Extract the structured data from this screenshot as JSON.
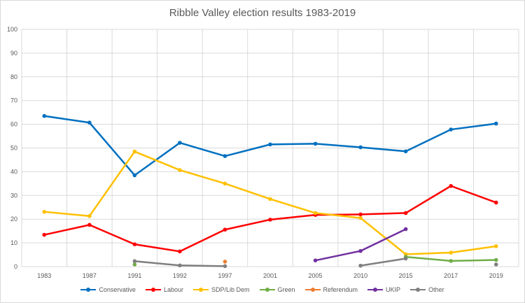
{
  "chart_data": {
    "type": "line",
    "title": "Ribble Valley election results 1983-2019",
    "categories": [
      "1983",
      "1987",
      "1991",
      "1992",
      "1997",
      "2001",
      "2005",
      "2010",
      "2015",
      "2017",
      "2019"
    ],
    "ylim": [
      0,
      100
    ],
    "yticks": [
      0,
      10,
      20,
      30,
      40,
      50,
      60,
      70,
      80,
      90,
      100
    ],
    "grid": true,
    "legend_position": "bottom",
    "series": [
      {
        "name": "Conservative",
        "color": "#0070c0",
        "values": [
          63.5,
          60.7,
          38.5,
          52.2,
          46.6,
          51.5,
          51.8,
          50.3,
          48.6,
          57.8,
          60.3
        ]
      },
      {
        "name": "Labour",
        "color": "#ff0000",
        "values": [
          13.4,
          17.6,
          9.4,
          6.4,
          15.6,
          19.8,
          21.8,
          22.0,
          22.6,
          34.0,
          27.0
        ]
      },
      {
        "name": "SDP/Lib Dem",
        "color": "#ffc000",
        "values": [
          23.1,
          21.3,
          48.5,
          40.7,
          35.0,
          28.5,
          22.6,
          20.5,
          5.2,
          5.9,
          8.6
        ]
      },
      {
        "name": "Green",
        "color": "#70ad47",
        "values": [
          null,
          null,
          0.9,
          null,
          null,
          null,
          null,
          null,
          4.1,
          2.4,
          2.8
        ]
      },
      {
        "name": "Referendum",
        "color": "#ed7d31",
        "values": [
          null,
          null,
          null,
          null,
          2.1,
          null,
          null,
          null,
          null,
          null,
          null
        ]
      },
      {
        "name": "UKIP",
        "color": "#7030a0",
        "values": [
          null,
          null,
          null,
          null,
          null,
          null,
          2.6,
          6.6,
          15.8,
          null,
          null
        ]
      },
      {
        "name": "Other",
        "color": "#7f7f7f",
        "values": [
          null,
          null,
          2.3,
          0.5,
          0.2,
          null,
          null,
          0.4,
          3.4,
          null,
          0.9
        ]
      }
    ]
  }
}
